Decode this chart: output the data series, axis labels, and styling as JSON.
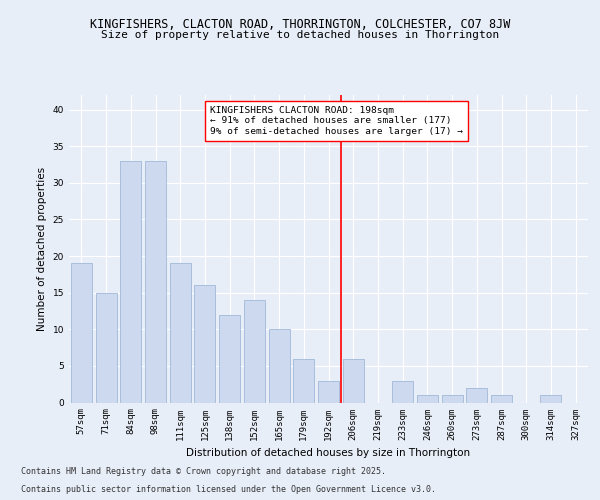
{
  "title1": "KINGFISHERS, CLACTON ROAD, THORRINGTON, COLCHESTER, CO7 8JW",
  "title2": "Size of property relative to detached houses in Thorrington",
  "xlabel": "Distribution of detached houses by size in Thorrington",
  "ylabel": "Number of detached properties",
  "categories": [
    "57sqm",
    "71sqm",
    "84sqm",
    "98sqm",
    "111sqm",
    "125sqm",
    "138sqm",
    "152sqm",
    "165sqm",
    "179sqm",
    "192sqm",
    "206sqm",
    "219sqm",
    "233sqm",
    "246sqm",
    "260sqm",
    "273sqm",
    "287sqm",
    "300sqm",
    "314sqm",
    "327sqm"
  ],
  "values": [
    19,
    15,
    33,
    33,
    19,
    16,
    12,
    14,
    10,
    6,
    3,
    6,
    0,
    3,
    1,
    1,
    2,
    1,
    0,
    1,
    0
  ],
  "bar_color": "#ccd9ee",
  "bar_edge_color": "#a0b8d8",
  "reference_line_x": 10.5,
  "annotation_line1": "KINGFISHERS CLACTON ROAD: 198sqm",
  "annotation_line2": "← 91% of detached houses are smaller (177)",
  "annotation_line3": "9% of semi-detached houses are larger (17) →",
  "ylim": [
    0,
    42
  ],
  "yticks": [
    0,
    5,
    10,
    15,
    20,
    25,
    30,
    35,
    40
  ],
  "bg_color": "#e8eef8",
  "plot_bg_color": "#e8eef8",
  "footer1": "Contains HM Land Registry data © Crown copyright and database right 2025.",
  "footer2": "Contains public sector information licensed under the Open Government Licence v3.0.",
  "title_fontsize": 8.5,
  "subtitle_fontsize": 8.0,
  "axis_label_fontsize": 7.5,
  "tick_fontsize": 6.5,
  "annotation_fontsize": 6.8,
  "footer_fontsize": 6.0
}
